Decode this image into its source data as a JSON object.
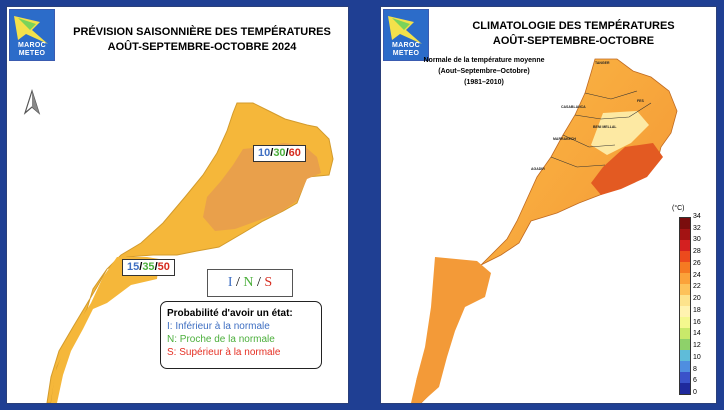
{
  "left_panel": {
    "title_line1": "PRÉVISION SAISONNIÈRE DES TEMPÉRATURES",
    "title_line2": "AOÛT-SEPTEMBRE-OCTOBRE 2024",
    "logo_text": "MAROC\nMETEO",
    "north_arrow": "north-arrow-icon",
    "region_north": {
      "I": "10",
      "N": "30",
      "S": "60",
      "sep": "/"
    },
    "region_south": {
      "I": "15",
      "N": "35",
      "S": "50",
      "sep": "/"
    },
    "ins_key": {
      "I": "I",
      "N": "N",
      "S": "S",
      "sep": "/"
    },
    "legend": {
      "heading": "Probabilité d'avoir un état:",
      "items": [
        {
          "text": "I: Inférieur à la normale",
          "color": "#3f6fc2"
        },
        {
          "text": "N: Proche de la normale",
          "color": "#4caf3c"
        },
        {
          "text": "S: Supérieur à la normale",
          "color": "#e53024"
        }
      ]
    },
    "colors": {
      "map_light": "#f5b73a",
      "map_dark": "#e9a04b",
      "I": "#3f6fc2",
      "N": "#4caf3c",
      "S": "#d62b1e"
    }
  },
  "right_panel": {
    "title_line1": "CLIMATOLOGIE DES TEMPÉRATURES",
    "title_line2": "AOÛT-SEPTEMBRE-OCTOBRE",
    "logo_text": "MAROC\nMETEO",
    "map_heading": "Normale de la température moyenne",
    "map_period": "(Aout–Septembre–Octobre)",
    "map_years": "(1981–2010)",
    "colorbar": {
      "unit": "(°C)",
      "ticks": [
        "34",
        "32",
        "30",
        "28",
        "26",
        "24",
        "22",
        "20",
        "18",
        "16",
        "14",
        "12",
        "10",
        "8",
        "6",
        "0"
      ],
      "colors": [
        "#7a0d0d",
        "#a31313",
        "#d42020",
        "#ec4a1d",
        "#f57a22",
        "#fba23a",
        "#fdc25a",
        "#fde38c",
        "#fff3b0",
        "#f4f88e",
        "#c9e96a",
        "#8ed16a",
        "#5fbcd9",
        "#4f8ee0",
        "#3a52c9",
        "#1f2a9c"
      ]
    }
  }
}
